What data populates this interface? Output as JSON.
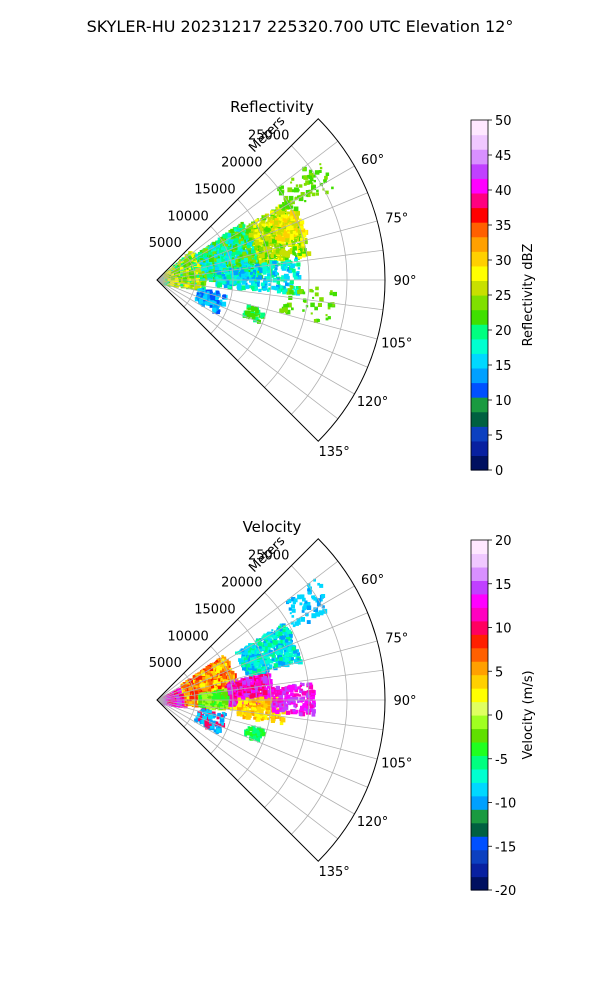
{
  "figure": {
    "suptitle": "SKYLER-HU  20231217  225320.700 UTC Elevation 12°"
  },
  "chart_data": [
    {
      "type": "heatmap",
      "projection": "polar-sector",
      "title": "Reflectivity",
      "radial_label": "Meters",
      "radial_ticks": [
        5000,
        10000,
        15000,
        20000,
        25000
      ],
      "rlim": [
        0,
        30000
      ],
      "angle_range_deg": [
        45,
        135
      ],
      "angle_ticks": [
        "60°",
        "75°",
        "90°",
        "105°",
        "120°",
        "135°"
      ],
      "grid": true,
      "colorbar": {
        "label": "Reflectivity dBZ",
        "vmin": 0,
        "vmax": 50,
        "ticks": [
          0,
          5,
          10,
          15,
          20,
          25,
          30,
          35,
          40,
          45,
          50
        ],
        "colors": [
          "#001060",
          "#0820a0",
          "#0c40c0",
          "#006040",
          "#1a9a40",
          "#0050ff",
          "#00a0ff",
          "#00d8ff",
          "#00ffd0",
          "#00ff80",
          "#40e000",
          "#80e000",
          "#c8e000",
          "#ffff00",
          "#ffd000",
          "#ffa000",
          "#ff6000",
          "#ff0000",
          "#ff0080",
          "#ff00ff",
          "#c040ff",
          "#d890ff",
          "#f0c8ff",
          "#ffe8ff"
        ]
      }
    },
    {
      "type": "heatmap",
      "projection": "polar-sector",
      "title": "Velocity",
      "radial_label": "Meters",
      "radial_ticks": [
        5000,
        10000,
        15000,
        20000,
        25000
      ],
      "rlim": [
        0,
        30000
      ],
      "angle_range_deg": [
        45,
        135
      ],
      "angle_ticks": [
        "60°",
        "75°",
        "90°",
        "105°",
        "120°",
        "135°"
      ],
      "grid": true,
      "colorbar": {
        "label": "Velocity (m/s)",
        "vmin": -20,
        "vmax": 20,
        "ticks": [
          -20,
          -15,
          -10,
          -5,
          0,
          5,
          10,
          15,
          20
        ],
        "colors": [
          "#001060",
          "#0820a0",
          "#0c40c0",
          "#0050ff",
          "#006040",
          "#1a9a40",
          "#00a0ff",
          "#00d8ff",
          "#00ffd0",
          "#00ff80",
          "#20ff20",
          "#60e000",
          "#a0ff20",
          "#e0ff60",
          "#ffff00",
          "#ffd000",
          "#ffa000",
          "#ff6000",
          "#ff2000",
          "#ff0060",
          "#ff00c0",
          "#ff00ff",
          "#c040ff",
          "#d890ff",
          "#f0c8ff",
          "#ffe8ff"
        ]
      }
    }
  ]
}
